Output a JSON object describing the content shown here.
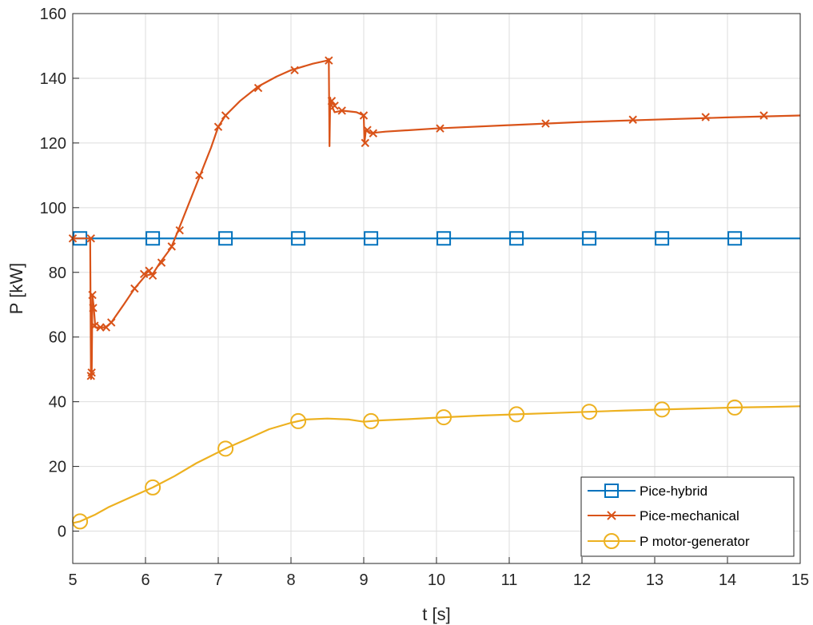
{
  "chart_data": {
    "type": "line",
    "xlabel": "t [s]",
    "ylabel": "P [kW]",
    "xlim": [
      5,
      15
    ],
    "ylim": [
      -10,
      160
    ],
    "xticks": [
      5,
      6,
      7,
      8,
      9,
      10,
      11,
      12,
      13,
      14,
      15
    ],
    "yticks": [
      0,
      20,
      40,
      60,
      80,
      100,
      120,
      140,
      160
    ],
    "grid": true,
    "legend_position": "bottom-right",
    "series": [
      {
        "name": "Pice-hybrid",
        "color": "#0072BD",
        "marker": "square",
        "points": [
          [
            5,
            90.5
          ],
          [
            15,
            90.5
          ]
        ],
        "markers": [
          [
            5.1,
            90.5
          ],
          [
            6.1,
            90.5
          ],
          [
            7.1,
            90.5
          ],
          [
            8.1,
            90.5
          ],
          [
            9.1,
            90.5
          ],
          [
            10.1,
            90.5
          ],
          [
            11.1,
            90.5
          ],
          [
            12.1,
            90.5
          ],
          [
            13.1,
            90.5
          ],
          [
            14.1,
            90.5
          ]
        ]
      },
      {
        "name": "Pice-mechanical",
        "color": "#D95319",
        "marker": "x",
        "points": [
          [
            5.0,
            90.5
          ],
          [
            5.22,
            90.5
          ],
          [
            5.24,
            90.5
          ],
          [
            5.25,
            47
          ],
          [
            5.26,
            48
          ],
          [
            5.27,
            73
          ],
          [
            5.29,
            69
          ],
          [
            5.31,
            63
          ],
          [
            5.35,
            63
          ],
          [
            5.45,
            63
          ],
          [
            5.53,
            64.5
          ],
          [
            5.7,
            70
          ],
          [
            5.85,
            75
          ],
          [
            6.0,
            79
          ],
          [
            6.1,
            79.5
          ],
          [
            6.2,
            83
          ],
          [
            6.35,
            87.5
          ],
          [
            6.45,
            93
          ],
          [
            6.6,
            101.5
          ],
          [
            6.75,
            110
          ],
          [
            6.9,
            118.5
          ],
          [
            7.0,
            125
          ],
          [
            7.1,
            128.5
          ],
          [
            7.3,
            133
          ],
          [
            7.55,
            137.5
          ],
          [
            7.8,
            140.5
          ],
          [
            8.0,
            142.5
          ],
          [
            8.3,
            144.5
          ],
          [
            8.5,
            145.5
          ],
          [
            8.52,
            146
          ],
          [
            8.53,
            119
          ],
          [
            8.54,
            134
          ],
          [
            8.55,
            132
          ],
          [
            8.58,
            130.5
          ],
          [
            8.6,
            129.5
          ],
          [
            8.7,
            130
          ],
          [
            8.9,
            129.5
          ],
          [
            9.0,
            128.5
          ],
          [
            9.01,
            120
          ],
          [
            9.03,
            124
          ],
          [
            9.08,
            123
          ],
          [
            9.3,
            123.5
          ],
          [
            10.0,
            124.5
          ],
          [
            11.0,
            125.5
          ],
          [
            12.0,
            126.5
          ],
          [
            13.0,
            127.2
          ],
          [
            14.0,
            127.9
          ],
          [
            15.0,
            128.5
          ]
        ],
        "markers": [
          [
            5.0,
            90.5
          ],
          [
            5.25,
            90.5
          ],
          [
            5.25,
            48
          ],
          [
            5.26,
            49
          ],
          [
            5.27,
            73
          ],
          [
            5.28,
            69
          ],
          [
            5.3,
            63.5
          ],
          [
            5.38,
            63
          ],
          [
            5.46,
            63
          ],
          [
            5.53,
            64.5
          ],
          [
            5.85,
            75
          ],
          [
            5.98,
            79.5
          ],
          [
            6.05,
            80.5
          ],
          [
            6.1,
            79
          ],
          [
            6.22,
            83
          ],
          [
            6.36,
            88
          ],
          [
            6.47,
            93
          ],
          [
            6.74,
            110
          ],
          [
            7.0,
            125
          ],
          [
            7.1,
            128.5
          ],
          [
            7.55,
            137
          ],
          [
            8.05,
            142.5
          ],
          [
            8.52,
            145.5
          ],
          [
            8.56,
            133
          ],
          [
            8.6,
            131.5
          ],
          [
            8.7,
            130
          ],
          [
            9.0,
            128.5
          ],
          [
            9.02,
            120
          ],
          [
            9.05,
            124
          ],
          [
            9.13,
            123
          ],
          [
            10.05,
            124.5
          ],
          [
            11.5,
            126
          ],
          [
            12.7,
            127.2
          ],
          [
            13.7,
            128
          ],
          [
            14.5,
            128.5
          ]
        ]
      },
      {
        "name": "P motor-generator",
        "color": "#EDB120",
        "marker": "circle",
        "points": [
          [
            5.0,
            2.5
          ],
          [
            5.1,
            3
          ],
          [
            5.3,
            5
          ],
          [
            5.5,
            7.5
          ],
          [
            5.8,
            10.5
          ],
          [
            6.1,
            13.5
          ],
          [
            6.4,
            17
          ],
          [
            6.7,
            21
          ],
          [
            7.1,
            25.5
          ],
          [
            7.4,
            28.5
          ],
          [
            7.7,
            31.5
          ],
          [
            8.0,
            33.5
          ],
          [
            8.2,
            34.5
          ],
          [
            8.5,
            34.8
          ],
          [
            8.8,
            34.5
          ],
          [
            9.0,
            33.8
          ],
          [
            9.2,
            34.2
          ],
          [
            9.6,
            34.6
          ],
          [
            10.1,
            35.2
          ],
          [
            10.6,
            35.7
          ],
          [
            11.1,
            36.1
          ],
          [
            11.6,
            36.5
          ],
          [
            12.1,
            36.9
          ],
          [
            12.6,
            37.3
          ],
          [
            13.1,
            37.6
          ],
          [
            13.6,
            37.9
          ],
          [
            14.1,
            38.2
          ],
          [
            14.6,
            38.4
          ],
          [
            15.0,
            38.6
          ]
        ],
        "markers": [
          [
            5.1,
            3
          ],
          [
            6.1,
            13.5
          ],
          [
            7.1,
            25.5
          ],
          [
            8.1,
            34
          ],
          [
            9.1,
            34
          ],
          [
            10.1,
            35.2
          ],
          [
            11.1,
            36.1
          ],
          [
            12.1,
            36.9
          ],
          [
            13.1,
            37.6
          ],
          [
            14.1,
            38.2
          ]
        ]
      }
    ]
  }
}
